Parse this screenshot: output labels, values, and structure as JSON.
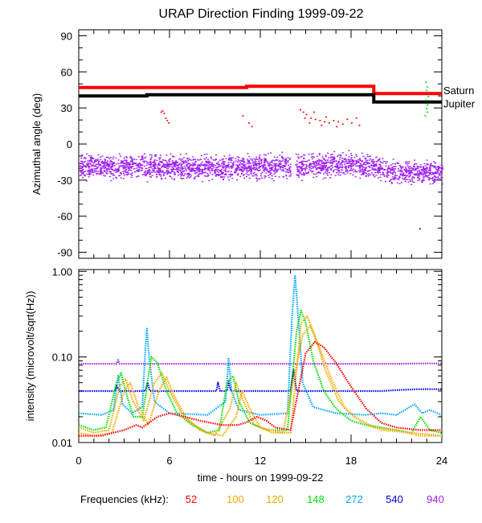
{
  "title": "URAP Direction Finding  1999-09-22",
  "xlabel": "time - hours on 1999-09-22",
  "freq_label": "Frequencies (kHz):",
  "frequencies": [
    {
      "label": "52",
      "color": "#ff0000"
    },
    {
      "label": "100",
      "color": "#ffa500"
    },
    {
      "label": "120",
      "color": "#e0b000"
    },
    {
      "label": "148",
      "color": "#00e000"
    },
    {
      "label": "272",
      "color": "#00a8ff"
    },
    {
      "label": "540",
      "color": "#0000e6"
    },
    {
      "label": "940",
      "color": "#a020f0"
    }
  ],
  "chart_data": [
    {
      "type": "scatter",
      "ylabel": "Azimuthal angle (deg)",
      "xlim": [
        0,
        24
      ],
      "ylim": [
        -95,
        95
      ],
      "xticks": [
        "0",
        "6",
        "12",
        "18",
        "24"
      ],
      "yticks": [
        "90",
        "60",
        "30",
        "0",
        "-30",
        "-60",
        "-90"
      ],
      "reference_lines": [
        {
          "name": "Saturn",
          "color": "#ff0000",
          "points": [
            [
              0,
              47
            ],
            [
              11.1,
              47
            ],
            [
              11.1,
              48
            ],
            [
              19.5,
              48
            ],
            [
              19.5,
              42
            ],
            [
              24,
              42
            ]
          ]
        },
        {
          "name": "Jupiter",
          "color": "#000000",
          "points": [
            [
              0,
              40
            ],
            [
              4.5,
              40
            ],
            [
              4.5,
              41
            ],
            [
              19.5,
              41
            ],
            [
              19.5,
              35
            ],
            [
              24,
              35
            ]
          ]
        }
      ],
      "series": [
        {
          "color": "#a020f0",
          "values_desc": "dense band",
          "band": [
            [
              0,
              -18
            ],
            [
              6,
              -19
            ],
            [
              12,
              -19
            ],
            [
              18,
              -17
            ],
            [
              19.5,
              -18
            ],
            [
              20.5,
              -23
            ],
            [
              24,
              -23
            ]
          ],
          "spread": 6
        },
        {
          "color": "#ff0000",
          "points": [
            [
              5.5,
              28
            ],
            [
              5.6,
              26
            ],
            [
              5.7,
              22
            ],
            [
              5.8,
              20
            ],
            [
              5.9,
              18
            ],
            [
              5.4,
              27
            ],
            [
              10.8,
              24
            ],
            [
              11.2,
              18
            ],
            [
              11.4,
              15
            ],
            [
              14.6,
              29
            ],
            [
              14.8,
              27
            ],
            [
              15.0,
              25
            ],
            [
              15.3,
              22
            ],
            [
              15.6,
              21
            ],
            [
              15.9,
              20
            ],
            [
              16.2,
              19
            ],
            [
              16.5,
              18
            ],
            [
              16.8,
              20
            ],
            [
              17.1,
              19
            ],
            [
              17.4,
              17
            ],
            [
              17.7,
              21
            ],
            [
              18.0,
              18
            ],
            [
              18.3,
              22
            ],
            [
              15.2,
              18
            ],
            [
              16.0,
              16
            ],
            [
              17.0,
              15
            ],
            [
              18.5,
              16
            ],
            [
              16.3,
              23
            ],
            [
              15.5,
              27
            ],
            [
              14.9,
              22
            ]
          ]
        },
        {
          "color": "#00e000",
          "points": [
            [
              22.9,
              52
            ],
            [
              23.0,
              48
            ],
            [
              22.95,
              45
            ],
            [
              23.05,
              40
            ],
            [
              22.9,
              37
            ],
            [
              23.0,
              33
            ],
            [
              22.95,
              30
            ],
            [
              23.0,
              27
            ],
            [
              22.85,
              24
            ]
          ]
        },
        {
          "color": "#0000e6",
          "points": [
            [
              22.5,
              -70
            ]
          ]
        }
      ]
    },
    {
      "type": "line",
      "ylabel": "intensity (microvolt/sqrt(Hz))",
      "xlim": [
        0,
        24
      ],
      "ylim": [
        0.01,
        1.05
      ],
      "yscale": "log",
      "xticks": [
        "0",
        "6",
        "12",
        "18",
        "24"
      ],
      "yticks": [
        "1.00",
        "0.10",
        "0.01"
      ],
      "series": [
        {
          "name": "940",
          "color": "#a020f0",
          "points": [
            [
              0,
              0.083
            ],
            [
              2.5,
              0.083
            ],
            [
              2.6,
              0.092
            ],
            [
              2.7,
              0.083
            ],
            [
              6,
              0.083
            ],
            [
              10,
              0.083
            ],
            [
              12,
              0.083
            ],
            [
              18,
              0.083
            ],
            [
              21,
              0.083
            ],
            [
              22.6,
              0.084
            ],
            [
              24,
              0.084
            ]
          ]
        },
        {
          "name": "540",
          "color": "#0000e6",
          "points": [
            [
              0,
              0.04
            ],
            [
              2.4,
              0.04
            ],
            [
              2.5,
              0.046
            ],
            [
              2.7,
              0.04
            ],
            [
              4.4,
              0.04
            ],
            [
              4.55,
              0.05
            ],
            [
              4.7,
              0.04
            ],
            [
              9.1,
              0.04
            ],
            [
              9.2,
              0.05
            ],
            [
              9.35,
              0.04
            ],
            [
              9.8,
              0.04
            ],
            [
              9.9,
              0.052
            ],
            [
              10.05,
              0.04
            ],
            [
              14.0,
              0.04
            ],
            [
              14.2,
              0.07
            ],
            [
              14.4,
              0.04
            ],
            [
              20,
              0.04
            ],
            [
              21,
              0.041
            ],
            [
              22.5,
              0.042
            ],
            [
              24,
              0.042
            ]
          ]
        },
        {
          "name": "272",
          "color": "#00a8ff",
          "points": [
            [
              0,
              0.022
            ],
            [
              1.5,
              0.021
            ],
            [
              2.3,
              0.024
            ],
            [
              2.6,
              0.06
            ],
            [
              2.9,
              0.028
            ],
            [
              3.5,
              0.022
            ],
            [
              4.2,
              0.026
            ],
            [
              4.4,
              0.12
            ],
            [
              4.5,
              0.22
            ],
            [
              4.65,
              0.1
            ],
            [
              5.0,
              0.03
            ],
            [
              6,
              0.022
            ],
            [
              8.5,
              0.021
            ],
            [
              9.7,
              0.03
            ],
            [
              9.9,
              0.095
            ],
            [
              10.1,
              0.04
            ],
            [
              10.6,
              0.024
            ],
            [
              12,
              0.021
            ],
            [
              13.8,
              0.022
            ],
            [
              14.1,
              0.3
            ],
            [
              14.3,
              0.9
            ],
            [
              14.5,
              0.3
            ],
            [
              14.8,
              0.05
            ],
            [
              15.5,
              0.026
            ],
            [
              17,
              0.022
            ],
            [
              19,
              0.021
            ],
            [
              20,
              0.022
            ],
            [
              21,
              0.021
            ],
            [
              22.2,
              0.028
            ],
            [
              22.7,
              0.022
            ],
            [
              23.2,
              0.024
            ],
            [
              24,
              0.021
            ]
          ]
        },
        {
          "name": "148",
          "color": "#00e000",
          "points": [
            [
              0,
              0.016
            ],
            [
              1.0,
              0.014
            ],
            [
              1.8,
              0.015
            ],
            [
              2.5,
              0.05
            ],
            [
              2.8,
              0.065
            ],
            [
              3.1,
              0.04
            ],
            [
              3.6,
              0.02
            ],
            [
              4.2,
              0.02
            ],
            [
              4.8,
              0.1
            ],
            [
              5.2,
              0.085
            ],
            [
              5.8,
              0.04
            ],
            [
              6.5,
              0.022
            ],
            [
              7.5,
              0.016
            ],
            [
              8.5,
              0.013
            ],
            [
              9.3,
              0.014
            ],
            [
              9.8,
              0.05
            ],
            [
              10.2,
              0.06
            ],
            [
              10.6,
              0.03
            ],
            [
              11.3,
              0.017
            ],
            [
              12.5,
              0.014
            ],
            [
              13.8,
              0.014
            ],
            [
              14.4,
              0.2
            ],
            [
              14.7,
              0.35
            ],
            [
              15.0,
              0.25
            ],
            [
              15.5,
              0.09
            ],
            [
              16.2,
              0.04
            ],
            [
              17.0,
              0.025
            ],
            [
              18.0,
              0.018
            ],
            [
              19.0,
              0.016
            ],
            [
              20.0,
              0.015
            ],
            [
              21.0,
              0.014
            ],
            [
              22.0,
              0.013
            ],
            [
              22.6,
              0.02
            ],
            [
              23.2,
              0.014
            ],
            [
              24,
              0.013
            ]
          ]
        },
        {
          "name": "120",
          "color": "#e0b000",
          "points": [
            [
              0,
              0.015
            ],
            [
              1.0,
              0.013
            ],
            [
              2.0,
              0.014
            ],
            [
              2.7,
              0.045
            ],
            [
              3.1,
              0.055
            ],
            [
              3.6,
              0.03
            ],
            [
              4.3,
              0.018
            ],
            [
              5.0,
              0.05
            ],
            [
              5.5,
              0.065
            ],
            [
              6.0,
              0.04
            ],
            [
              6.8,
              0.022
            ],
            [
              8.0,
              0.014
            ],
            [
              9.0,
              0.012
            ],
            [
              10.0,
              0.025
            ],
            [
              10.4,
              0.05
            ],
            [
              10.9,
              0.03
            ],
            [
              11.6,
              0.016
            ],
            [
              12.8,
              0.013
            ],
            [
              14.0,
              0.013
            ],
            [
              14.7,
              0.25
            ],
            [
              15.1,
              0.3
            ],
            [
              15.6,
              0.18
            ],
            [
              16.3,
              0.07
            ],
            [
              17.2,
              0.03
            ],
            [
              18.2,
              0.02
            ],
            [
              19.5,
              0.015
            ],
            [
              21.0,
              0.014
            ],
            [
              22.5,
              0.012
            ],
            [
              24,
              0.012
            ]
          ]
        },
        {
          "name": "100",
          "color": "#ffa500",
          "points": [
            [
              0,
              0.013
            ],
            [
              1.0,
              0.012
            ],
            [
              2.2,
              0.013
            ],
            [
              3.0,
              0.04
            ],
            [
              3.4,
              0.05
            ],
            [
              3.9,
              0.028
            ],
            [
              4.6,
              0.016
            ],
            [
              5.3,
              0.04
            ],
            [
              5.8,
              0.058
            ],
            [
              6.3,
              0.035
            ],
            [
              7.2,
              0.018
            ],
            [
              8.5,
              0.013
            ],
            [
              9.5,
              0.012
            ],
            [
              10.4,
              0.02
            ],
            [
              10.8,
              0.04
            ],
            [
              11.3,
              0.025
            ],
            [
              12.0,
              0.015
            ],
            [
              13.5,
              0.013
            ],
            [
              14.8,
              0.18
            ],
            [
              15.3,
              0.23
            ],
            [
              15.9,
              0.13
            ],
            [
              16.7,
              0.055
            ],
            [
              17.6,
              0.025
            ],
            [
              18.6,
              0.018
            ],
            [
              20.0,
              0.014
            ],
            [
              22.0,
              0.013
            ],
            [
              24,
              0.012
            ]
          ]
        },
        {
          "name": "52",
          "color": "#ff0000",
          "points": [
            [
              0,
              0.012
            ],
            [
              1.5,
              0.012
            ],
            [
              3.0,
              0.014
            ],
            [
              3.8,
              0.016
            ],
            [
              4.2,
              0.015
            ],
            [
              5.2,
              0.02
            ],
            [
              6.0,
              0.022
            ],
            [
              7.0,
              0.02
            ],
            [
              8.0,
              0.018
            ],
            [
              9.5,
              0.016
            ],
            [
              10.5,
              0.016
            ],
            [
              11.0,
              0.017
            ],
            [
              11.8,
              0.02
            ],
            [
              12.4,
              0.018
            ],
            [
              13.0,
              0.015
            ],
            [
              14.0,
              0.014
            ],
            [
              15.0,
              0.11
            ],
            [
              15.6,
              0.15
            ],
            [
              16.2,
              0.13
            ],
            [
              17.0,
              0.085
            ],
            [
              18.0,
              0.045
            ],
            [
              19.0,
              0.025
            ],
            [
              20.0,
              0.017
            ],
            [
              21.0,
              0.015
            ],
            [
              22.5,
              0.014
            ],
            [
              24,
              0.014
            ]
          ]
        }
      ]
    }
  ]
}
